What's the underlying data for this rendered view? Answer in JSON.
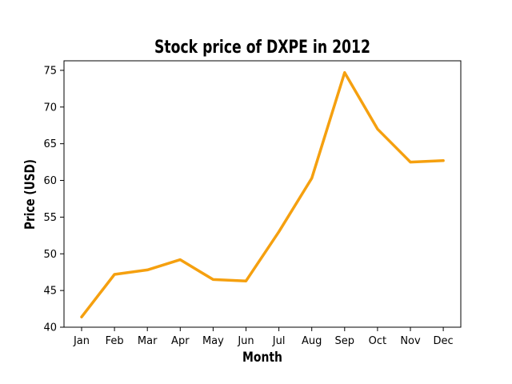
{
  "chart_data": {
    "type": "line",
    "title": "Stock price of DXPE in 2012",
    "xlabel": "Month",
    "ylabel": "Price (USD)",
    "categories": [
      "Jan",
      "Feb",
      "Mar",
      "Apr",
      "May",
      "Jun",
      "Jul",
      "Aug",
      "Sep",
      "Oct",
      "Nov",
      "Dec"
    ],
    "series": [
      {
        "values": [
          41.4,
          47.2,
          47.8,
          49.2,
          46.5,
          46.3,
          53.0,
          60.3,
          74.7,
          67.0,
          62.5,
          62.7
        ],
        "color": "#f5a00f"
      }
    ],
    "ylim": [
      40,
      76.3
    ],
    "yticks": [
      "40",
      "45",
      "50",
      "55",
      "60",
      "65",
      "70",
      "75"
    ],
    "grid": false,
    "legend": "none"
  }
}
